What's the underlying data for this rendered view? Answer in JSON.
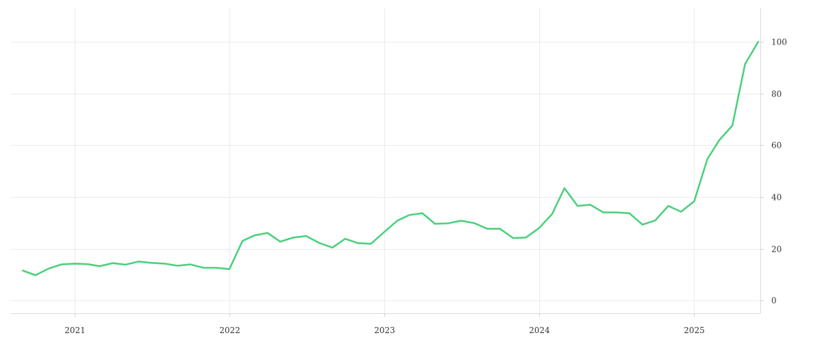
{
  "chart_data": {
    "type": "line",
    "title": "",
    "xlabel": "",
    "ylabel": "",
    "xlim": [
      "2020-08-04",
      "2025-06-06"
    ],
    "ylim": [
      -5,
      113
    ],
    "grid": true,
    "y_axis_side": "right",
    "x_ticks": [
      {
        "date": "2021-01-01",
        "label": "2021"
      },
      {
        "date": "2022-01-01",
        "label": "2022"
      },
      {
        "date": "2023-01-01",
        "label": "2023"
      },
      {
        "date": "2024-01-01",
        "label": "2024"
      },
      {
        "date": "2025-01-01",
        "label": "2025"
      }
    ],
    "y_ticks": [
      {
        "value": 0,
        "label": "0"
      },
      {
        "value": 20,
        "label": "20"
      },
      {
        "value": 40,
        "label": "40"
      },
      {
        "value": 60,
        "label": "60"
      },
      {
        "value": 80,
        "label": "80"
      },
      {
        "value": 100,
        "label": "100"
      }
    ],
    "series": [
      {
        "color": "#4cd07d",
        "x": [
          "2020-09-01",
          "2020-10-01",
          "2020-11-01",
          "2020-12-01",
          "2021-01-01",
          "2021-02-01",
          "2021-03-01",
          "2021-04-01",
          "2021-05-01",
          "2021-06-01",
          "2021-07-01",
          "2021-08-01",
          "2021-09-01",
          "2021-10-01",
          "2021-11-01",
          "2021-12-01",
          "2022-01-01",
          "2022-02-01",
          "2022-03-01",
          "2022-04-01",
          "2022-05-01",
          "2022-06-01",
          "2022-07-01",
          "2022-08-01",
          "2022-09-01",
          "2022-10-01",
          "2022-11-01",
          "2022-12-01",
          "2023-01-01",
          "2023-02-01",
          "2023-03-01",
          "2023-04-01",
          "2023-05-01",
          "2023-06-01",
          "2023-07-01",
          "2023-08-01",
          "2023-09-01",
          "2023-10-01",
          "2023-11-01",
          "2023-12-01",
          "2024-01-01",
          "2024-02-01",
          "2024-03-01",
          "2024-04-01",
          "2024-05-01",
          "2024-06-01",
          "2024-07-01",
          "2024-08-01",
          "2024-09-01",
          "2024-10-01",
          "2024-11-01",
          "2024-12-01",
          "2025-01-01",
          "2025-02-01",
          "2025-03-01",
          "2025-04-01",
          "2025-05-01",
          "2025-06-01"
        ],
        "values": [
          11.5,
          9.7,
          12.3,
          13.9,
          14.2,
          14.0,
          13.2,
          14.4,
          13.8,
          15.0,
          14.5,
          14.2,
          13.4,
          13.9,
          12.6,
          12.6,
          12.1,
          23.0,
          25.1,
          26.1,
          22.7,
          24.3,
          24.9,
          22.2,
          20.4,
          23.8,
          22.1,
          21.9,
          26.4,
          30.8,
          33.0,
          33.7,
          29.6,
          29.8,
          30.8,
          29.9,
          27.7,
          27.7,
          24.1,
          24.3,
          27.9,
          33.4,
          43.4,
          36.5,
          37.0,
          34.0,
          34.0,
          33.7,
          29.3,
          30.9,
          36.5,
          34.3,
          38.3,
          54.6,
          61.9,
          67.6,
          91.4,
          100
        ]
      }
    ]
  }
}
